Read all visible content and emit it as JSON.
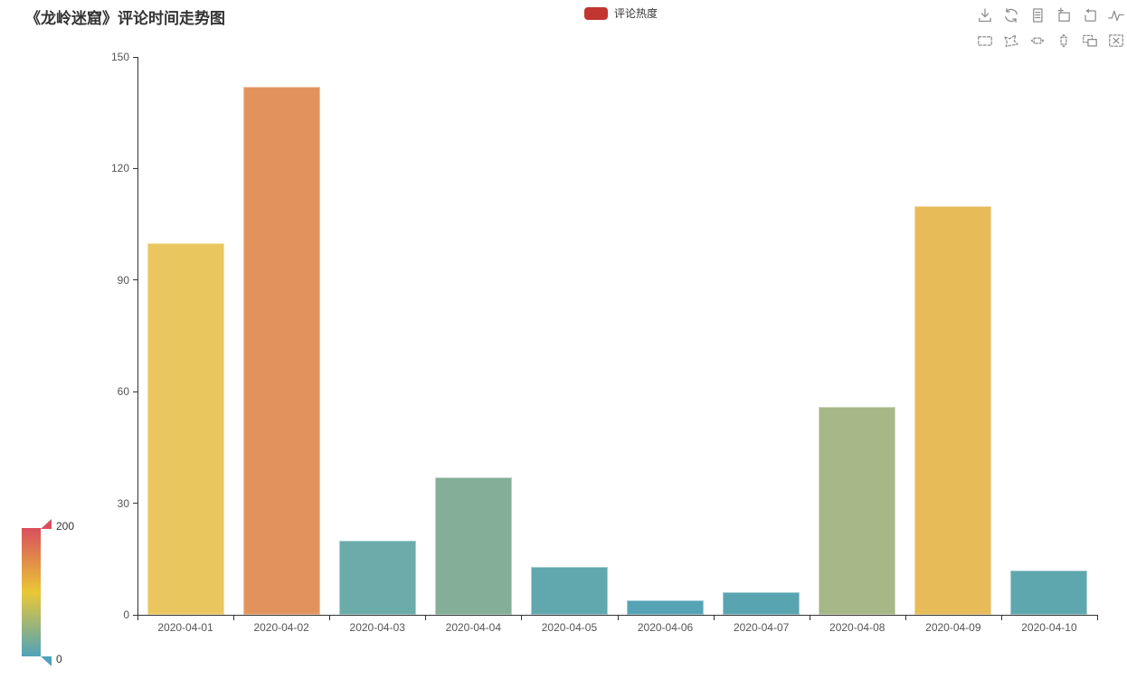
{
  "title": "《龙岭迷窟》评论时间走势图",
  "legend": {
    "label": "评论热度",
    "color": "#c23531"
  },
  "toolbox": {
    "icon_color": "#8c8c8c",
    "row1": [
      "save-image",
      "restore",
      "data-view",
      "data-zoom",
      "data-zoom-reset",
      "magic-type-line"
    ],
    "row2": [
      "brush-rect",
      "brush-polygon",
      "brush-line-x",
      "brush-line-y",
      "brush-keep",
      "brush-clear"
    ]
  },
  "chart_data": {
    "type": "bar",
    "title": "《龙岭迷窟》评论时间走势图",
    "categories": [
      "2020-04-01",
      "2020-04-02",
      "2020-04-03",
      "2020-04-04",
      "2020-04-05",
      "2020-04-06",
      "2020-04-07",
      "2020-04-08",
      "2020-04-09",
      "2020-04-10"
    ],
    "series": [
      {
        "name": "评论热度",
        "values": [
          100,
          142,
          20,
          37,
          13,
          4,
          6,
          56,
          110,
          12
        ]
      }
    ],
    "bar_colors": [
      "#e9c75e",
      "#e2935d",
      "#6babaa",
      "#84ae97",
      "#60a8ad",
      "#55a3b5",
      "#58a5b1",
      "#a6b888",
      "#e7bb58",
      "#5ea7ae"
    ],
    "xlabel": "",
    "ylabel": "",
    "ylim": [
      0,
      150
    ],
    "yticks": [
      0,
      30,
      60,
      90,
      120,
      150
    ],
    "grid": false,
    "legend_position": "top-center",
    "axis_line_color": "#333333",
    "axis_label_color": "#555555",
    "visual_map": {
      "min": 0,
      "max": 200,
      "min_label": "0",
      "max_label": "200",
      "palette": [
        "#50a3ba",
        "#eac736",
        "#d94e5d"
      ],
      "orient": "vertical",
      "position": "bottom-left"
    }
  }
}
